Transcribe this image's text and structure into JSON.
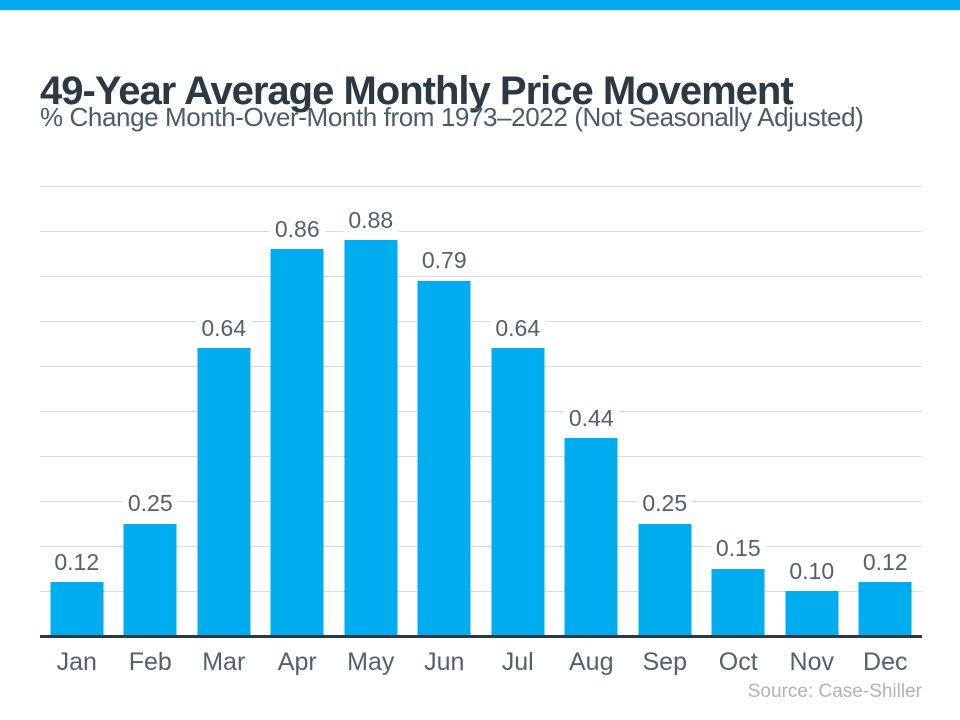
{
  "colors": {
    "accent": "#00AEEF",
    "titlecolor": "#2B3942",
    "subtitlecolor": "#4C5B66",
    "labelcolor": "#54616D",
    "gridlinecolor": "#DBDBDB",
    "axiscolor": "#2B3942",
    "sourcecolor": "#AEB4BA"
  },
  "chart_data": {
    "type": "bar",
    "title": "49-Year Average Monthly Price Movement",
    "subtitle": "% Change Month-Over-Month from 1973–2022 (Not Seasonally Adjusted)",
    "categories": [
      "Jan",
      "Feb",
      "Mar",
      "Apr",
      "May",
      "Jun",
      "Jul",
      "Aug",
      "Sep",
      "Oct",
      "Nov",
      "Dec"
    ],
    "values": [
      0.12,
      0.25,
      0.64,
      0.86,
      0.88,
      0.79,
      0.64,
      0.44,
      0.25,
      0.15,
      0.1,
      0.12
    ],
    "value_labels": [
      "0.12",
      "0.25",
      "0.64",
      "0.86",
      "0.88",
      "0.79",
      "0.64",
      "0.44",
      "0.25",
      "0.15",
      "0.10",
      "0.12"
    ],
    "xlabel": "",
    "ylabel": "",
    "ylim": [
      0,
      1.0
    ],
    "gridline_step": 0.1,
    "grid": true,
    "legend": "none",
    "bar_color": "#00AEEF",
    "source": "Source: Case-Shiller"
  }
}
